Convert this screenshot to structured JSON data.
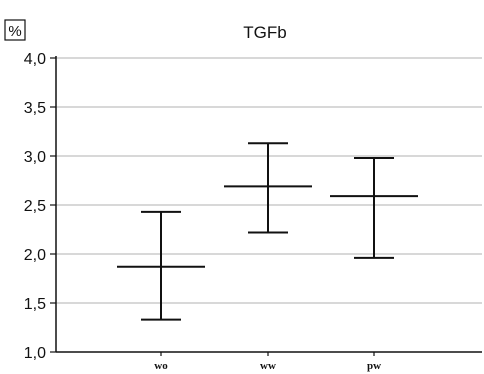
{
  "chart_data": {
    "type": "errorbar",
    "title": "TGFb",
    "unit_label": "%",
    "xlabel": "",
    "ylabel": "",
    "ylim": [
      1.0,
      4.0
    ],
    "yticks": [
      1.0,
      1.5,
      2.0,
      2.5,
      3.0,
      3.5,
      4.0
    ],
    "ytick_labels": [
      "1,0",
      "1,5",
      "2,0",
      "2,5",
      "3,0",
      "3,5",
      "4,0"
    ],
    "grid": true,
    "categories": [
      "WO",
      "WW",
      "PW"
    ],
    "category_labels": [
      "wo",
      "ww",
      "pw"
    ],
    "series": [
      {
        "mean": [
          1.87,
          2.69,
          2.59
        ],
        "upper": [
          2.43,
          3.13,
          2.98
        ],
        "lower": [
          1.33,
          2.22,
          1.96
        ]
      }
    ],
    "colors": {
      "axis": "#111111",
      "grid": "#b0b0b0",
      "marks": "#111111"
    }
  }
}
